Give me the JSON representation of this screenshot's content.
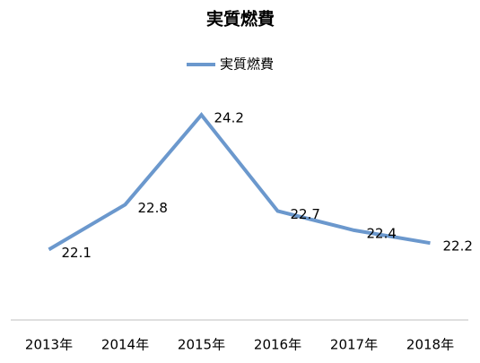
{
  "chart_data": {
    "type": "line",
    "title": "実質燃費",
    "categories": [
      "2013年",
      "2014年",
      "2015年",
      "2016年",
      "2017年",
      "2018年"
    ],
    "series": [
      {
        "name": "実質燃費",
        "color": "#6b98cd",
        "values": [
          22.1,
          22.8,
          24.2,
          22.7,
          22.4,
          22.2
        ]
      }
    ],
    "ylim": [
      21,
      25
    ],
    "legend": "top"
  }
}
